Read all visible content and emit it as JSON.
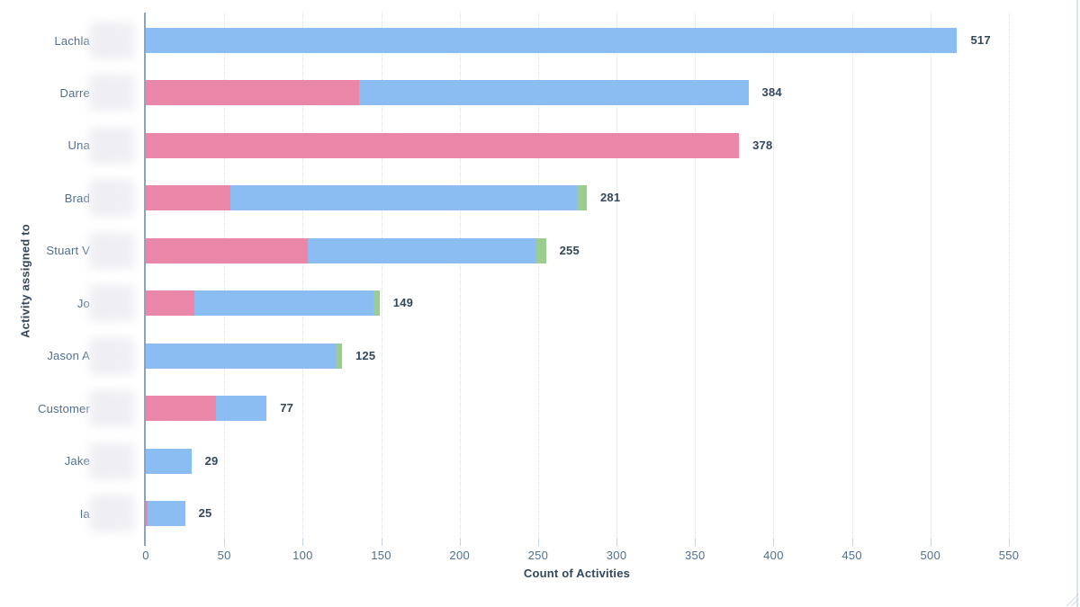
{
  "accent_colors": {
    "bar_blue": "#8bbdf2",
    "bar_pink": "#ea86a8",
    "bar_green": "#9bcd90",
    "axis_line": "#8ba4ba",
    "gridline": "#d6dee6",
    "tick_text": "#516f90",
    "title_text": "#33475b",
    "edge_line": "#d3e9f3"
  },
  "chart_data": {
    "type": "bar",
    "orientation": "horizontal",
    "stacked": true,
    "title": "",
    "xlabel": "Count of Activities",
    "ylabel": "Activity assigned to",
    "xlim": [
      0,
      550
    ],
    "x_ticks": [
      0,
      50,
      100,
      150,
      200,
      250,
      300,
      350,
      400,
      450,
      500,
      550
    ],
    "grid": "vertical-dotted",
    "legend_position": "none",
    "series_colors": {
      "pink": "#ea86a8",
      "blue": "#8bbdf2",
      "green": "#9bcd90"
    },
    "rows": [
      {
        "label": "Lachla",
        "label_redacted": true,
        "total": 517,
        "segments": [
          {
            "series": "blue",
            "value": 517
          }
        ]
      },
      {
        "label": "Darre",
        "label_redacted": true,
        "total": 384,
        "segments": [
          {
            "series": "pink",
            "value": 136
          },
          {
            "series": "blue",
            "value": 248
          }
        ]
      },
      {
        "label": "Una",
        "label_redacted": true,
        "total": 378,
        "segments": [
          {
            "series": "pink",
            "value": 378
          }
        ]
      },
      {
        "label": "Brad",
        "label_redacted": true,
        "total": 281,
        "segments": [
          {
            "series": "pink",
            "value": 54
          },
          {
            "series": "blue",
            "value": 221
          },
          {
            "series": "green",
            "value": 6
          }
        ]
      },
      {
        "label": "Stuart V",
        "label_redacted": true,
        "total": 255,
        "segments": [
          {
            "series": "pink",
            "value": 103
          },
          {
            "series": "blue",
            "value": 146
          },
          {
            "series": "green",
            "value": 6
          }
        ]
      },
      {
        "label": "Jo",
        "label_redacted": true,
        "total": 149,
        "segments": [
          {
            "series": "pink",
            "value": 31
          },
          {
            "series": "blue",
            "value": 114
          },
          {
            "series": "green",
            "value": 4
          }
        ]
      },
      {
        "label": "Jason A",
        "label_redacted": true,
        "total": 125,
        "segments": [
          {
            "series": "blue",
            "value": 121
          },
          {
            "series": "green",
            "value": 4
          }
        ]
      },
      {
        "label": "Customer",
        "label_redacted": true,
        "total": 77,
        "segments": [
          {
            "series": "pink",
            "value": 45
          },
          {
            "series": "blue",
            "value": 32
          }
        ]
      },
      {
        "label": "Jake",
        "label_redacted": true,
        "total": 29,
        "segments": [
          {
            "series": "blue",
            "value": 29
          }
        ]
      },
      {
        "label": "Ia",
        "label_redacted": true,
        "total": 25,
        "segments": [
          {
            "series": "pink",
            "value": 1
          },
          {
            "series": "blue",
            "value": 24
          }
        ]
      }
    ]
  }
}
